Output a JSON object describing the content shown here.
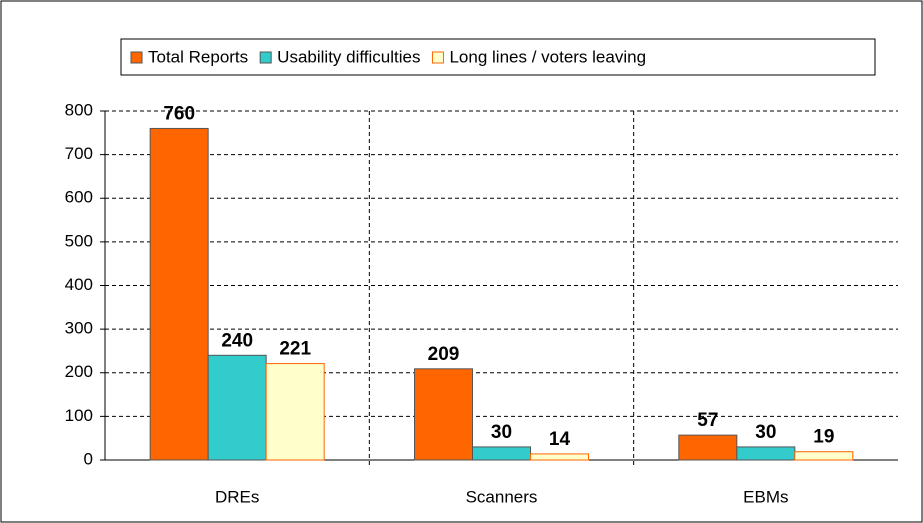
{
  "chart_data": {
    "type": "bar",
    "categories": [
      "DREs",
      "Scanners",
      "EBMs"
    ],
    "series": [
      {
        "name": "Total Reports",
        "color": "#ff6600",
        "values": [
          760,
          209,
          57
        ]
      },
      {
        "name": "Usability difficulties",
        "color": "#33cccc",
        "values": [
          240,
          30,
          30
        ]
      },
      {
        "name": "Long lines / voters leaving",
        "color": "#ffffcc",
        "values": [
          221,
          14,
          19
        ]
      }
    ],
    "ylim": [
      0,
      800
    ],
    "yticks": [
      0,
      100,
      200,
      300,
      400,
      500,
      600,
      700,
      800
    ],
    "grid": true,
    "legend": "top"
  }
}
